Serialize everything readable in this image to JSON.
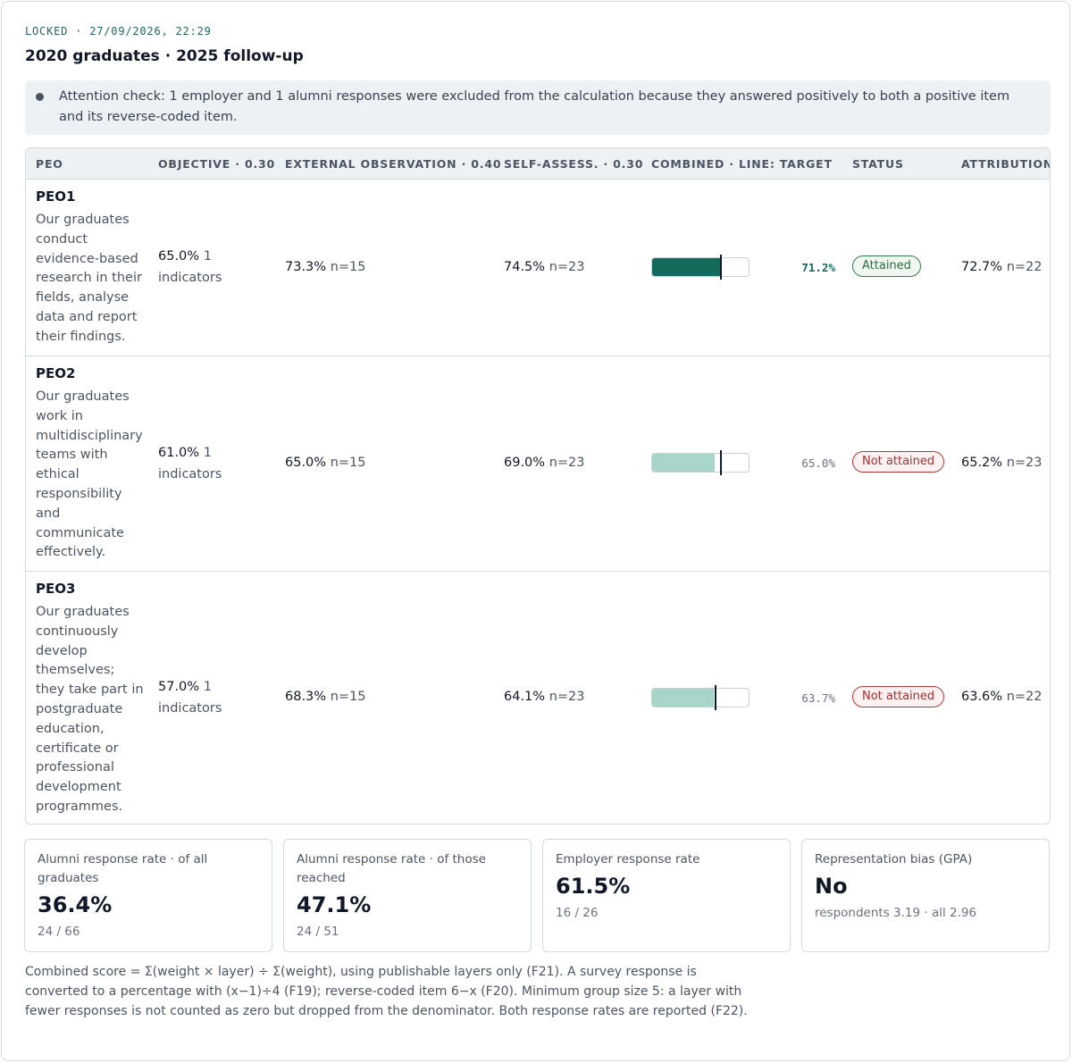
{
  "header": {
    "lock_status": "LOCKED · 27/09/2026, 22:29",
    "title": "2020 graduates · 2025 follow-up"
  },
  "notice": {
    "text": "Attention check: 1 employer and 1 alumni responses were excluded from the calculation because they answered positively to both a positive item and its reverse-coded item."
  },
  "table": {
    "headers": {
      "peo": "PEO",
      "objective": "OBJECTIVE · 0.30",
      "external": "EXTERNAL OBSERVATION · 0.40",
      "self": "SELF-ASSESS. · 0.30",
      "combined": "COMBINED · LINE: TARGET",
      "status": "STATUS",
      "attribution": "ATTRIBUTION"
    },
    "rows": [
      {
        "code": "PEO1",
        "description": "Our graduates conduct evidence-based research in their fields, analyse data and report their findings.",
        "objective_value": "65.0%",
        "objective_sub": "1 indicators",
        "external_value": "73.3%",
        "external_sub": "n=15",
        "self_value": "74.5%",
        "self_sub": "n=23",
        "combined_label": "71.2%",
        "combined_fraction": 0.712,
        "target_fraction": 0.7,
        "status": "Attained",
        "attribution_value": "72.7%",
        "attribution_sub": "n=22"
      },
      {
        "code": "PEO2",
        "description": "Our graduates work in multidisciplinary teams with ethical responsibility and communicate effectively.",
        "objective_value": "61.0%",
        "objective_sub": "1 indicators",
        "external_value": "65.0%",
        "external_sub": "n=15",
        "self_value": "69.0%",
        "self_sub": "n=23",
        "combined_label": "65.0%",
        "combined_fraction": 0.65,
        "target_fraction": 0.7,
        "status": "Not attained",
        "attribution_value": "65.2%",
        "attribution_sub": "n=23"
      },
      {
        "code": "PEO3",
        "description": "Our graduates continuously develop themselves; they take part in postgraduate education, certificate or professional development programmes.",
        "objective_value": "57.0%",
        "objective_sub": "1 indicators",
        "external_value": "68.3%",
        "external_sub": "n=15",
        "self_value": "64.1%",
        "self_sub": "n=23",
        "combined_label": "63.7%",
        "combined_fraction": 0.637,
        "target_fraction": 0.65,
        "status": "Not attained",
        "attribution_value": "63.6%",
        "attribution_sub": "n=22"
      }
    ]
  },
  "kpis": [
    {
      "label": "Alumni response rate · of all graduates",
      "value": "36.4%",
      "sub": "24 / 66"
    },
    {
      "label": "Alumni response rate · of those reached",
      "value": "47.1%",
      "sub": "24 / 51"
    },
    {
      "label": "Employer response rate",
      "value": "61.5%",
      "sub": "16 / 26"
    },
    {
      "label": "Representation bias (GPA)",
      "value": "No",
      "sub": "respondents 3.19 · all 2.96"
    }
  ],
  "footnote": "Combined score = Σ(weight × layer) ÷ Σ(weight), using publishable layers only (F21). A survey response is converted to a percentage with (x−1)÷4 (F19); reverse-coded item 6−x (F20). Minimum group size 5: a layer with fewer responses is not counted as zero but dropped from the denominator. Both response rates are reported (F22).",
  "colors": {
    "accent_dark": "#136b5c",
    "accent_light": "#a8d5ca",
    "attained": "#2f6b40",
    "not_attained": "#a13232"
  }
}
